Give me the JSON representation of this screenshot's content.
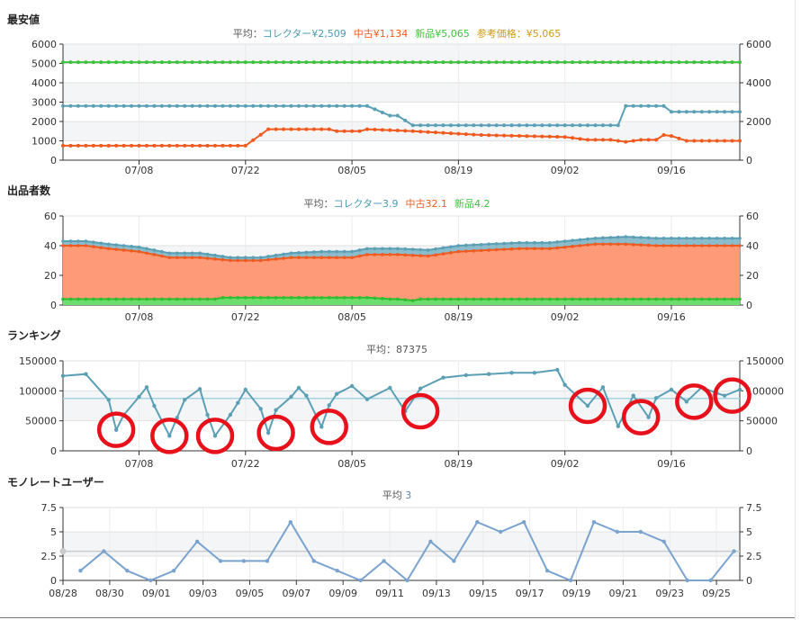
{
  "sections": {
    "price": "最安値",
    "sellers": "出品者数",
    "ranking": "ランキング",
    "monorate": "モノレートユーザー"
  },
  "chart_data": [
    {
      "id": "price",
      "type": "line",
      "subtitle_parts": [
        {
          "text": "平均：",
          "color": "#555555"
        },
        {
          "text": "コレクター¥2,509",
          "color": "#4c9bb0"
        },
        {
          "text": "中古¥1,134",
          "color": "#f05a1e"
        },
        {
          "text": "新品¥5,065",
          "color": "#3ec33e"
        },
        {
          "text": "参考価格：¥5,065",
          "color": "#d09a18"
        }
      ],
      "xlim": [
        0,
        89
      ],
      "ylim": [
        0,
        6000
      ],
      "yticks": [
        0,
        1000,
        2000,
        3000,
        4000,
        5000,
        6000
      ],
      "ytick_labels": [
        "0",
        "1000",
        "2000",
        "3000",
        "4000",
        "5000",
        "6000"
      ],
      "rticks": [
        0,
        2000,
        4000,
        6000
      ],
      "rtick_labels": [
        "0",
        "2000",
        "4000",
        "6000"
      ],
      "xticks": [
        10,
        24,
        38,
        52,
        66,
        80
      ],
      "xtick_labels": [
        "07/08",
        "07/22",
        "08/05",
        "08/19",
        "09/02",
        "09/16"
      ],
      "grid": true,
      "series": [
        {
          "key": "new",
          "color": "#3ec33e",
          "x": [
            0,
            89
          ],
          "y": [
            5065,
            5065
          ],
          "marker_step": 1
        },
        {
          "key": "collector",
          "color": "#5b9fb5",
          "x": [
            0,
            40,
            43,
            44,
            46,
            73,
            74,
            79,
            80,
            89
          ],
          "y": [
            2800,
            2800,
            2300,
            2300,
            1800,
            1800,
            2800,
            2800,
            2500,
            2500
          ],
          "marker_step": 1
        },
        {
          "key": "used",
          "color": "#f05a1e",
          "x": [
            0,
            24,
            27,
            35,
            36,
            39,
            40,
            46,
            55,
            66,
            69,
            72,
            74,
            76,
            78,
            79,
            80,
            82,
            89
          ],
          "y": [
            750,
            750,
            1600,
            1600,
            1500,
            1500,
            1600,
            1500,
            1300,
            1200,
            1050,
            1050,
            950,
            1050,
            1050,
            1300,
            1250,
            1000,
            1000
          ],
          "marker_step": 1
        }
      ]
    },
    {
      "id": "sellers",
      "type": "area",
      "subtitle_parts": [
        {
          "text": "平均：",
          "color": "#555555"
        },
        {
          "text": "コレクター3.9",
          "color": "#4c9bb0"
        },
        {
          "text": "中古32.1",
          "color": "#f05a1e"
        },
        {
          "text": "新品4.2",
          "color": "#3ec33e"
        }
      ],
      "xlim": [
        0,
        89
      ],
      "ylim": [
        0,
        60
      ],
      "yticks": [
        0,
        20,
        40,
        60
      ],
      "ytick_labels": [
        "0",
        "20",
        "40",
        "60"
      ],
      "rticks": [
        0,
        20,
        40,
        60
      ],
      "rtick_labels": [
        "0",
        "20",
        "40",
        "60"
      ],
      "xticks": [
        10,
        24,
        38,
        52,
        66,
        80
      ],
      "xtick_labels": [
        "07/08",
        "07/22",
        "08/05",
        "08/19",
        "09/02",
        "09/16"
      ],
      "grid": true,
      "total": {
        "color": "#5b9fb5",
        "fill": "#8cbccb",
        "x": [
          0,
          3,
          6,
          10,
          14,
          18,
          22,
          26,
          30,
          34,
          38,
          40,
          44,
          48,
          52,
          56,
          60,
          64,
          66,
          70,
          74,
          78,
          82,
          86,
          89
        ],
        "y": [
          43,
          43,
          41,
          39,
          35,
          35,
          32,
          32,
          35,
          36,
          36,
          38,
          38,
          37,
          40,
          41,
          42,
          42,
          43,
          45,
          46,
          45,
          45,
          45,
          45
        ]
      },
      "used": {
        "color": "#f05a1e",
        "fill": "#ff9a78",
        "x": [
          0,
          3,
          6,
          10,
          14,
          18,
          22,
          26,
          30,
          34,
          38,
          40,
          44,
          48,
          52,
          56,
          60,
          64,
          66,
          70,
          74,
          78,
          82,
          86,
          89
        ],
        "y": [
          40,
          40,
          38,
          36,
          32,
          32,
          30,
          30,
          32,
          32,
          32,
          34,
          34,
          33,
          36,
          37,
          38,
          38,
          39,
          41,
          41,
          40,
          40,
          40,
          40
        ]
      },
      "new": {
        "color": "#2ebd2e",
        "fill": "#6dde6d",
        "x": [
          0,
          20,
          21,
          40,
          43,
          44,
          46,
          47,
          89
        ],
        "y": [
          4,
          4,
          5,
          5,
          4,
          4,
          3,
          4,
          4
        ]
      }
    },
    {
      "id": "ranking",
      "type": "line",
      "subtitle_parts": [
        {
          "text": "平均：87375",
          "color": "#555555"
        }
      ],
      "xlim": [
        0,
        89
      ],
      "ylim": [
        0,
        150000
      ],
      "yticks": [
        0,
        50000,
        100000,
        150000
      ],
      "ytick_labels": [
        "0",
        "50000",
        "100000",
        "150000"
      ],
      "rticks": [
        0,
        50000,
        100000,
        150000
      ],
      "rtick_labels": [
        "0",
        "50000",
        "100000",
        "150000"
      ],
      "xticks": [
        10,
        24,
        38,
        52,
        66,
        80
      ],
      "xtick_labels": [
        "07/08",
        "07/22",
        "08/05",
        "08/19",
        "09/02",
        "09/16"
      ],
      "grid": true,
      "average": 87375,
      "average_color": "#a6d4e0",
      "series": [
        {
          "key": "rank",
          "color": "#5b9fb5",
          "x": [
            0,
            3,
            6,
            7,
            8,
            10,
            11,
            12,
            14,
            15,
            16,
            18,
            19,
            20,
            22,
            23,
            24,
            26,
            27,
            28,
            30,
            31,
            32,
            34,
            35,
            36,
            38,
            40,
            43,
            45,
            47,
            50,
            53,
            56,
            59,
            62,
            65,
            66,
            69,
            71,
            73,
            75,
            77,
            78,
            80,
            82,
            84,
            86,
            87,
            89
          ],
          "y": [
            125000,
            128000,
            85000,
            35000,
            60000,
            90000,
            106000,
            75000,
            25000,
            55000,
            85000,
            103000,
            60000,
            25000,
            60000,
            80000,
            102000,
            70000,
            30000,
            68000,
            90000,
            105000,
            92000,
            40000,
            76000,
            95000,
            108000,
            86000,
            105000,
            66000,
            104000,
            122000,
            126000,
            128000,
            130000,
            130000,
            135000,
            110000,
            75000,
            106000,
            41000,
            92000,
            56000,
            88000,
            102000,
            82000,
            106000,
            96000,
            92000,
            102000
          ]
        }
      ],
      "highlights": [
        {
          "x": 7,
          "y": 35000
        },
        {
          "x": 14,
          "y": 25000
        },
        {
          "x": 20,
          "y": 25000
        },
        {
          "x": 28,
          "y": 30000
        },
        {
          "x": 35,
          "y": 40000
        },
        {
          "x": 47,
          "y": 66000
        },
        {
          "x": 69,
          "y": 75000
        },
        {
          "x": 76,
          "y": 56000
        },
        {
          "x": 83,
          "y": 82000
        },
        {
          "x": 88,
          "y": 92000
        }
      ],
      "highlight_color": "#e8101a"
    },
    {
      "id": "monorate",
      "type": "line",
      "subtitle_parts": [
        {
          "text": "平均 ",
          "color": "#555555"
        },
        {
          "text": "3",
          "color": "#5b86b8"
        }
      ],
      "xlim": [
        0,
        29
      ],
      "ylim": [
        0,
        7.5
      ],
      "yticks": [
        0,
        2.5,
        5,
        7.5
      ],
      "ytick_labels": [
        "0",
        "2.5",
        "5",
        "7.5"
      ],
      "rticks": [
        0,
        2.5,
        5,
        7.5
      ],
      "rtick_labels": [
        "0",
        "2.5",
        "5",
        "7.5"
      ],
      "xticks": [
        0,
        2,
        4,
        6,
        8,
        10,
        12,
        14,
        16,
        18,
        20,
        22,
        24,
        26,
        28
      ],
      "xtick_labels": [
        "08/28",
        "08/30",
        "09/01",
        "09/03",
        "09/05",
        "09/07",
        "09/09",
        "09/11",
        "09/13",
        "09/15",
        "09/17",
        "09/19",
        "09/21",
        "09/23",
        "09/25"
      ],
      "grid": true,
      "average": 3,
      "average_color": "#cccccc",
      "series": [
        {
          "key": "users",
          "color": "#7aa3cf",
          "x": [
            0.75,
            1.75,
            2.75,
            3.75,
            4.75,
            5.75,
            6.75,
            7.75,
            8.75,
            9.75,
            10.75,
            11.75,
            12.75,
            13.75,
            14.75,
            15.75,
            16.75,
            17.75,
            18.75,
            19.75,
            20.75,
            21.75,
            22.75,
            23.75,
            24.75,
            25.75,
            26.75,
            27.75,
            28.75
          ],
          "y": [
            1,
            3,
            1,
            0,
            1,
            4,
            2,
            2,
            2,
            6,
            2,
            1,
            0,
            2,
            0,
            4,
            2,
            6,
            5,
            6,
            1,
            0,
            6,
            5,
            5,
            4,
            0,
            0,
            3
          ]
        }
      ]
    }
  ]
}
